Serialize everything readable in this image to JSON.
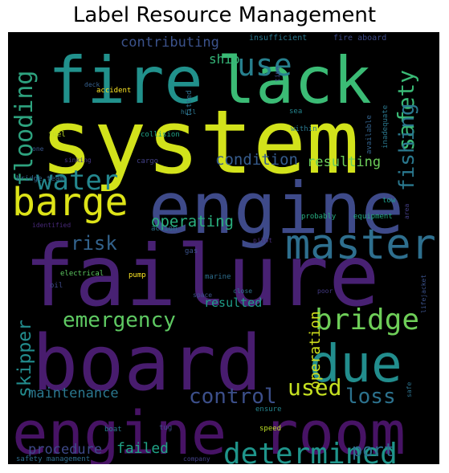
{
  "title": "Label Resource Management",
  "background_color": "#000000",
  "colormap": "viridis",
  "words": [
    {
      "text": "system",
      "color": "#d2e21b"
    },
    {
      "text": "failure",
      "color": "#482173"
    },
    {
      "text": "board",
      "color": "#481c6e"
    },
    {
      "text": "engine",
      "color": "#3e4a89"
    },
    {
      "text": "engine room",
      "color": "#471365"
    },
    {
      "text": "fire",
      "color": "#21918c"
    },
    {
      "text": "lack",
      "color": "#3bbb75"
    },
    {
      "text": "due",
      "color": "#228d8d"
    },
    {
      "text": "master",
      "color": "#2e6f8e"
    },
    {
      "text": "barge",
      "color": "#dde318"
    },
    {
      "text": "bridge",
      "color": "#6ece58"
    },
    {
      "text": "use",
      "color": "#27808e"
    },
    {
      "text": "water",
      "color": "#24878e"
    },
    {
      "text": "flooding",
      "color": "#2ea37f"
    },
    {
      "text": "safety",
      "color": "#3aba76"
    },
    {
      "text": "fishing",
      "color": "#2a788e"
    },
    {
      "text": "determined",
      "color": "#1f958b"
    },
    {
      "text": "control",
      "color": "#3c4f8a"
    },
    {
      "text": "loss",
      "color": "#2c728e"
    },
    {
      "text": "used",
      "color": "#c5e021"
    },
    {
      "text": "emergency",
      "color": "#5ec962"
    },
    {
      "text": "risk",
      "color": "#33638d"
    },
    {
      "text": "skipper",
      "color": "#228c8d"
    },
    {
      "text": "operating",
      "color": "#2ab07f"
    },
    {
      "text": "condition",
      "color": "#365c8d"
    },
    {
      "text": "resulting",
      "color": "#6ccd5a"
    },
    {
      "text": "operation",
      "color": "#d0e11c"
    },
    {
      "text": "maintenance",
      "color": "#2a778e"
    },
    {
      "text": "contributing",
      "color": "#3b528b"
    },
    {
      "text": "ship",
      "color": "#35b779"
    },
    {
      "text": "failed",
      "color": "#20a386"
    },
    {
      "text": "procedure",
      "color": "#3e4989"
    },
    {
      "text": "port",
      "color": "#2e6e8e"
    },
    {
      "text": "resulted",
      "color": "#1f9e89"
    },
    {
      "text": "insufficient",
      "color": "#2a788e"
    },
    {
      "text": "fire aboard",
      "color": "#3e4a89"
    },
    {
      "text": "deck",
      "color": "#35608d"
    },
    {
      "text": "time",
      "color": "#3d4d8a"
    },
    {
      "text": "accident",
      "color": "#fde725"
    },
    {
      "text": "fitted",
      "color": "#2d718e"
    },
    {
      "text": "hull",
      "color": "#2b758e"
    },
    {
      "text": "sea",
      "color": "#25858e"
    },
    {
      "text": "available",
      "color": "#33638d"
    },
    {
      "text": "area",
      "color": "#433e85"
    },
    {
      "text": "collision",
      "color": "#20a486"
    },
    {
      "text": "within",
      "color": "#2a788e"
    },
    {
      "text": "inadequate",
      "color": "#2a788e"
    },
    {
      "text": "fuel",
      "color": "#c0df25"
    },
    {
      "text": "one",
      "color": "#39568c"
    },
    {
      "text": "cargo",
      "color": "#424086"
    },
    {
      "text": "sinking",
      "color": "#453781"
    },
    {
      "text": "bridge team",
      "color": "#31688e"
    },
    {
      "text": "tow",
      "color": "#1e9b8a"
    },
    {
      "text": "identified",
      "color": "#482979"
    },
    {
      "text": "action",
      "color": "#2c728e"
    },
    {
      "text": "probably",
      "color": "#27ad81"
    },
    {
      "text": "equipment",
      "color": "#24aa83"
    },
    {
      "text": "pilot",
      "color": "#472d7b"
    },
    {
      "text": "gas",
      "color": "#3b528b"
    },
    {
      "text": "electrical",
      "color": "#5ec962"
    },
    {
      "text": "pump",
      "color": "#fde725"
    },
    {
      "text": "marine",
      "color": "#2e6e8e"
    },
    {
      "text": "oil",
      "color": "#3e4a89"
    },
    {
      "text": "close",
      "color": "#2c728e"
    },
    {
      "text": "poor",
      "color": "#443a83"
    },
    {
      "text": "lifejacket",
      "color": "#3b528b"
    },
    {
      "text": "space",
      "color": "#3b528b"
    },
    {
      "text": "safe",
      "color": "#2c728e"
    },
    {
      "text": "boat",
      "color": "#2a788e"
    },
    {
      "text": "tug",
      "color": "#3e4a89"
    },
    {
      "text": "ensure",
      "color": "#25848e"
    },
    {
      "text": "speed",
      "color": "#bddf26"
    },
    {
      "text": "safety management",
      "color": "#2f6c8e"
    },
    {
      "text": "company",
      "color": "#424186"
    }
  ]
}
